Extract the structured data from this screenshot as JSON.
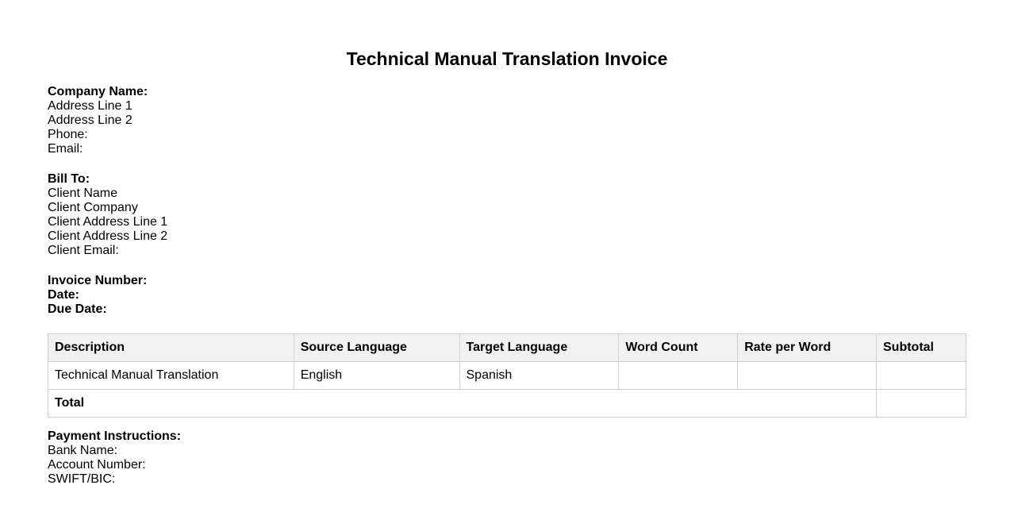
{
  "title": "Technical Manual Translation Invoice",
  "company": {
    "name_label": "Company Name:",
    "address1": "Address Line 1",
    "address2": "Address Line 2",
    "phone": "Phone:",
    "email": "Email:"
  },
  "bill_to": {
    "label": "Bill To:",
    "client_name": "Client Name",
    "client_company": "Client Company",
    "address1": "Client Address Line 1",
    "address2": "Client Address Line 2",
    "email": "Client Email:"
  },
  "invoice": {
    "number_label": "Invoice Number:",
    "date_label": "Date:",
    "due_label": "Due Date:"
  },
  "table": {
    "headers": [
      "Description",
      "Source Language",
      "Target Language",
      "Word Count",
      "Rate per Word",
      "Subtotal"
    ],
    "rows": [
      [
        "Technical Manual Translation",
        "English",
        "Spanish",
        "",
        "",
        ""
      ]
    ],
    "total_label": "Total",
    "total_value": ""
  },
  "payment": {
    "label": "Payment Instructions:",
    "bank": "Bank Name:",
    "account": "Account Number:",
    "swift": "SWIFT/BIC:"
  }
}
